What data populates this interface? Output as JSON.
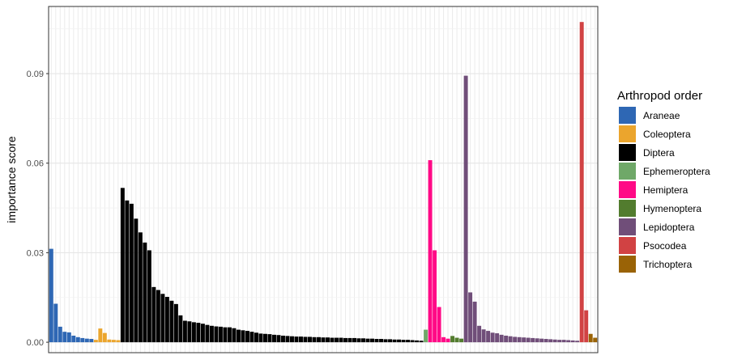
{
  "chart_data": {
    "type": "bar",
    "ylabel": "importance score",
    "xlabel": "",
    "ylim": [
      -0.0035,
      0.1125
    ],
    "yticks": [
      0.0,
      0.03,
      0.06,
      0.09
    ],
    "ytick_labels": [
      "0.00",
      "0.03",
      "0.06",
      "0.09"
    ],
    "grid": true,
    "legend": {
      "title": "Arthropod order",
      "placement": "right",
      "entries": [
        {
          "name": "Araneae",
          "color": "#2E67B4"
        },
        {
          "name": "Coleoptera",
          "color": "#EBA52D"
        },
        {
          "name": "Diptera",
          "color": "#000000"
        },
        {
          "name": "Ephemeroptera",
          "color": "#6FA868"
        },
        {
          "name": "Hemiptera",
          "color": "#FF0A86"
        },
        {
          "name": "Hymenoptera",
          "color": "#527C2E"
        },
        {
          "name": "Lepidoptera",
          "color": "#704E79"
        },
        {
          "name": "Psocodea",
          "color": "#D14243"
        },
        {
          "name": "Trichoptera",
          "color": "#9A6306"
        }
      ]
    },
    "series": [
      {
        "name": "Araneae",
        "values": [
          0.0313,
          0.0129,
          0.0052,
          0.0035,
          0.0033,
          0.0022,
          0.0017,
          0.0014,
          0.0012,
          0.0011
        ]
      },
      {
        "name": "Coleoptera",
        "values": [
          0.0008,
          0.0046,
          0.0031,
          0.0009,
          0.0008,
          0.0007
        ]
      },
      {
        "name": "Diptera",
        "values": [
          0.0517,
          0.0475,
          0.0464,
          0.0414,
          0.0368,
          0.0334,
          0.0308,
          0.0185,
          0.0175,
          0.0162,
          0.0152,
          0.0139,
          0.0128,
          0.009,
          0.0072,
          0.007,
          0.0067,
          0.0065,
          0.0062,
          0.0058,
          0.0055,
          0.0053,
          0.0052,
          0.005,
          0.005,
          0.0047,
          0.0042,
          0.004,
          0.0038,
          0.0035,
          0.0032,
          0.0029,
          0.0028,
          0.0027,
          0.0025,
          0.0024,
          0.0022,
          0.0021,
          0.002,
          0.0019,
          0.0019,
          0.0018,
          0.0018,
          0.0017,
          0.0017,
          0.0016,
          0.0016,
          0.0015,
          0.0015,
          0.0015,
          0.0014,
          0.0014,
          0.0014,
          0.0013,
          0.0013,
          0.0012,
          0.0012,
          0.0011,
          0.0011,
          0.001,
          0.001,
          0.0009,
          0.0009,
          0.0008,
          0.0008,
          0.0007,
          0.0006,
          0.0005
        ]
      },
      {
        "name": "Ephemeroptera",
        "values": [
          0.0042
        ]
      },
      {
        "name": "Hemiptera",
        "values": [
          0.061,
          0.0308,
          0.0118,
          0.0017,
          0.0012
        ]
      },
      {
        "name": "Hymenoptera",
        "values": [
          0.0021,
          0.0015,
          0.0012
        ]
      },
      {
        "name": "Lepidoptera",
        "values": [
          0.0893,
          0.0167,
          0.0136,
          0.0055,
          0.0043,
          0.0038,
          0.0032,
          0.003,
          0.0025,
          0.0022,
          0.002,
          0.0018,
          0.0017,
          0.0016,
          0.0015,
          0.0014,
          0.0013,
          0.0012,
          0.0011,
          0.001,
          0.0009,
          0.0008,
          0.0008,
          0.0007,
          0.0006,
          0.0005
        ]
      },
      {
        "name": "Psocodea",
        "values": [
          0.1073,
          0.0107
        ]
      },
      {
        "name": "Trichoptera",
        "values": [
          0.0028,
          0.0015
        ]
      }
    ]
  }
}
